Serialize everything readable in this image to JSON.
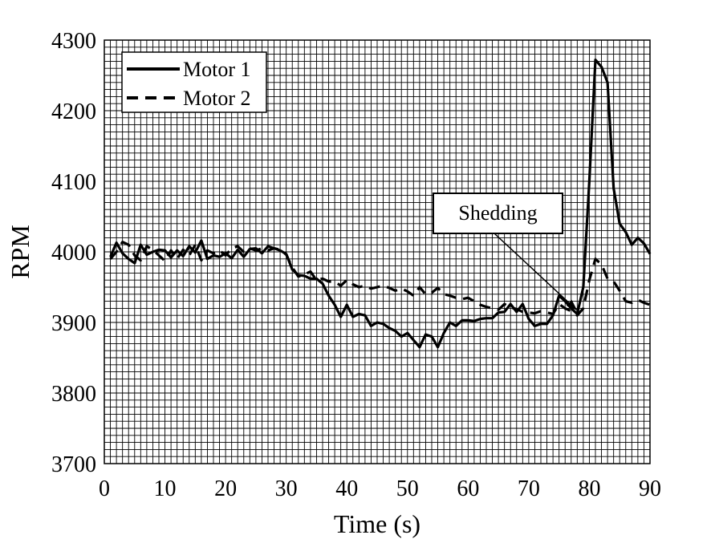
{
  "chart_data": {
    "type": "line",
    "title": "",
    "xlabel": "Time (s)",
    "ylabel": "RPM",
    "xlim": [
      0,
      90
    ],
    "ylim": [
      3700,
      4300
    ],
    "xticks": [
      0,
      10,
      20,
      30,
      40,
      50,
      60,
      70,
      80,
      90
    ],
    "yticks": [
      3700,
      3800,
      3900,
      4000,
      4100,
      4200,
      4300
    ],
    "grid": true,
    "legend_position": "top-left",
    "series": [
      {
        "name": "Motor 1",
        "style": "solid",
        "color": "#000000",
        "x": [
          1,
          2,
          3,
          4,
          5,
          6,
          7,
          8,
          9,
          10,
          11,
          12,
          13,
          14,
          15,
          16,
          17,
          18,
          19,
          20,
          21,
          22,
          23,
          24,
          25,
          26,
          27,
          28,
          29,
          30,
          31,
          32,
          33,
          34,
          35,
          36,
          37,
          38,
          39,
          40,
          41,
          42,
          43,
          44,
          45,
          46,
          47,
          48,
          49,
          50,
          51,
          52,
          53,
          54,
          55,
          56,
          57,
          58,
          59,
          60,
          61,
          62,
          63,
          64,
          65,
          66,
          67,
          68,
          69,
          70,
          71,
          72,
          73,
          74,
          75,
          76,
          77,
          78,
          79,
          80,
          81,
          82,
          83,
          84,
          85,
          86,
          87,
          88,
          89,
          90
        ],
        "y": [
          3993,
          4013,
          3998,
          3990,
          3984,
          4010,
          3996,
          4000,
          4003,
          4002,
          3992,
          4002,
          3994,
          4008,
          3999,
          4016,
          3990,
          3995,
          3993,
          3998,
          3991,
          4003,
          3993,
          4004,
          4005,
          3998,
          4008,
          4005,
          4002,
          3997,
          3975,
          3967,
          3966,
          3962,
          3962,
          3955,
          3938,
          3925,
          3908,
          3925,
          3908,
          3912,
          3910,
          3895,
          3900,
          3898,
          3892,
          3888,
          3880,
          3885,
          3875,
          3865,
          3883,
          3880,
          3865,
          3885,
          3900,
          3895,
          3903,
          3903,
          3902,
          3905,
          3906,
          3906,
          3914,
          3915,
          3926,
          3915,
          3926,
          3905,
          3895,
          3898,
          3898,
          3910,
          3938,
          3930,
          3920,
          3912,
          3950,
          4100,
          4272,
          4262,
          4240,
          4090,
          4040,
          4028,
          4010,
          4020,
          4012,
          3997
        ]
      },
      {
        "name": "Motor 2",
        "style": "dashed",
        "color": "#000000",
        "x": [
          1,
          2,
          3,
          4,
          5,
          6,
          7,
          8,
          9,
          10,
          11,
          12,
          13,
          14,
          15,
          16,
          17,
          18,
          19,
          20,
          21,
          22,
          23,
          24,
          25,
          26,
          27,
          28,
          29,
          30,
          31,
          32,
          33,
          34,
          35,
          36,
          37,
          38,
          39,
          40,
          41,
          42,
          43,
          44,
          45,
          46,
          47,
          48,
          49,
          50,
          51,
          52,
          53,
          54,
          55,
          56,
          57,
          58,
          59,
          60,
          61,
          62,
          63,
          64,
          65,
          66,
          67,
          68,
          69,
          70,
          71,
          72,
          73,
          74,
          75,
          76,
          77,
          78,
          79,
          80,
          81,
          82,
          83,
          84,
          85,
          86,
          87,
          88,
          89,
          90
        ],
        "y": [
          3990,
          4000,
          4014,
          4010,
          3995,
          3988,
          4008,
          4003,
          3995,
          3987,
          4002,
          3990,
          4003,
          3995,
          4010,
          3988,
          4002,
          3998,
          4002,
          3995,
          4005,
          4008,
          4000,
          4005,
          4002,
          4005,
          4002,
          4005,
          4003,
          3996,
          3978,
          3965,
          3968,
          3972,
          3960,
          3962,
          3958,
          3958,
          3952,
          3960,
          3954,
          3950,
          3952,
          3948,
          3950,
          3952,
          3949,
          3945,
          3948,
          3944,
          3938,
          3950,
          3940,
          3942,
          3949,
          3940,
          3938,
          3935,
          3933,
          3935,
          3930,
          3925,
          3922,
          3920,
          3918,
          3926,
          3921,
          3919,
          3915,
          3914,
          3913,
          3916,
          3914,
          3912,
          3926,
          3920,
          3916,
          3910,
          3920,
          3960,
          3990,
          3982,
          3962,
          3958,
          3945,
          3930,
          3928,
          3932,
          3928,
          3925
        ]
      }
    ],
    "annotations": [
      {
        "text": "Shedding",
        "arrow_to_x": 78,
        "arrow_to_y": 3917
      }
    ]
  }
}
